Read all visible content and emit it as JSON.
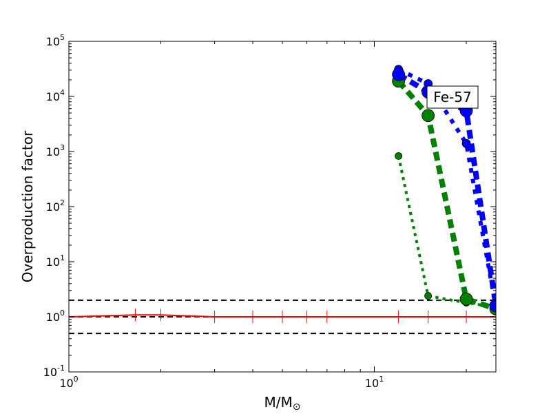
{
  "chart_data": {
    "type": "line",
    "title": "",
    "xlabel": "M/M",
    "xlabel_symbol": "⊙",
    "ylabel": "Overproduction factor",
    "xscale": "log",
    "yscale": "log",
    "xlim": [
      1,
      25
    ],
    "ylim": [
      0.1,
      100000
    ],
    "grid": false,
    "annotation": "Fe-57",
    "x_ticks": [
      {
        "value": 1,
        "base": "10",
        "exp": "0"
      },
      {
        "value": 10,
        "base": "10",
        "exp": "1"
      }
    ],
    "y_ticks": [
      {
        "value": 0.1,
        "base": "10",
        "exp": "-1"
      },
      {
        "value": 1,
        "base": "10",
        "exp": "0"
      },
      {
        "value": 10,
        "base": "10",
        "exp": "1"
      },
      {
        "value": 100,
        "base": "10",
        "exp": "2"
      },
      {
        "value": 1000,
        "base": "10",
        "exp": "3"
      },
      {
        "value": 10000,
        "base": "10",
        "exp": "4"
      },
      {
        "value": 100000,
        "base": "10",
        "exp": "5"
      }
    ],
    "reference_lines": [
      {
        "y": 2,
        "color": "#000000"
      },
      {
        "y": 1,
        "color": "#000000"
      },
      {
        "y": 0.5,
        "color": "#000000"
      }
    ],
    "series": [
      {
        "color": "#ff0000",
        "style": "solid",
        "width": 2,
        "marker": "tick",
        "points": [
          [
            1,
            1
          ],
          [
            1.65,
            1.08
          ],
          [
            2,
            1.08
          ],
          [
            3,
            1.0
          ],
          [
            4,
            1.0
          ],
          [
            5,
            1.0
          ],
          [
            6,
            1.0
          ],
          [
            7,
            1.0
          ],
          [
            12,
            1.0
          ],
          [
            15,
            1.0
          ],
          [
            20,
            1.0
          ],
          [
            25,
            1.0
          ]
        ]
      },
      {
        "color": "#008000",
        "style": "dotted",
        "width": 4,
        "marker": "circle",
        "marker_size": 5,
        "points": [
          [
            12,
            830
          ],
          [
            15,
            2.4
          ],
          [
            20,
            1.8
          ],
          [
            25,
            1.5
          ]
        ]
      },
      {
        "color": "#008000",
        "style": "dashed",
        "width": 8,
        "marker": "circle",
        "marker_size": 9,
        "points": [
          [
            12,
            19000
          ],
          [
            15,
            4500
          ],
          [
            20,
            2.1
          ],
          [
            25,
            1.4
          ]
        ]
      },
      {
        "color": "#0000ff",
        "style": "dotted",
        "width": 6,
        "marker": "circle",
        "marker_size": 6,
        "points": [
          [
            12,
            31000
          ],
          [
            15,
            17000
          ],
          [
            20,
            1400
          ],
          [
            25,
            1.5
          ]
        ]
      },
      {
        "color": "#0000ff",
        "style": "dashed",
        "width": 8,
        "marker": "circle",
        "marker_size": 9,
        "points": [
          [
            12,
            25000
          ],
          [
            15,
            12000
          ],
          [
            20,
            5500
          ],
          [
            25,
            1.6
          ]
        ]
      }
    ]
  }
}
